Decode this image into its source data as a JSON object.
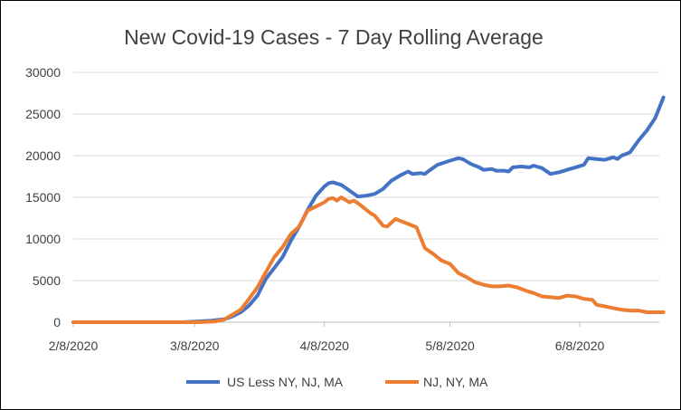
{
  "chart_data": {
    "type": "line",
    "title": "New Covid-19 Cases - 7 Day Rolling Average",
    "xlabel": "",
    "ylabel": "",
    "ylim": [
      0,
      30000
    ],
    "y_ticks": [
      0,
      5000,
      10000,
      15000,
      20000,
      25000,
      30000
    ],
    "grid": true,
    "legend_position": "bottom",
    "x_start": "2/8/2020",
    "x_end_day": 140,
    "x_ticks": [
      {
        "label": "2/8/2020",
        "day": 0
      },
      {
        "label": "3/8/2020",
        "day": 29
      },
      {
        "label": "4/8/2020",
        "day": 60
      },
      {
        "label": "5/8/2020",
        "day": 90
      },
      {
        "label": "6/8/2020",
        "day": 121
      }
    ],
    "series": [
      {
        "name": "US Less NY, NJ, MA",
        "color": "#4472c4",
        "points": [
          [
            0,
            0
          ],
          [
            20,
            0
          ],
          [
            26,
            0
          ],
          [
            30,
            100
          ],
          [
            33,
            200
          ],
          [
            36,
            350
          ],
          [
            38,
            700
          ],
          [
            40,
            1200
          ],
          [
            42,
            2000
          ],
          [
            44,
            3200
          ],
          [
            46,
            5200
          ],
          [
            48,
            6500
          ],
          [
            50,
            7800
          ],
          [
            52,
            9800
          ],
          [
            54,
            11500
          ],
          [
            56,
            13500
          ],
          [
            58,
            15200
          ],
          [
            60,
            16300
          ],
          [
            61,
            16700
          ],
          [
            62,
            16800
          ],
          [
            64,
            16500
          ],
          [
            66,
            15800
          ],
          [
            68,
            15100
          ],
          [
            70,
            15200
          ],
          [
            72,
            15400
          ],
          [
            74,
            16000
          ],
          [
            76,
            17000
          ],
          [
            78,
            17600
          ],
          [
            80,
            18100
          ],
          [
            81,
            17800
          ],
          [
            83,
            17900
          ],
          [
            84,
            17800
          ],
          [
            85,
            18200
          ],
          [
            87,
            18900
          ],
          [
            90,
            19400
          ],
          [
            92,
            19700
          ],
          [
            93,
            19600
          ],
          [
            95,
            19000
          ],
          [
            97,
            18600
          ],
          [
            98,
            18300
          ],
          [
            100,
            18400
          ],
          [
            101,
            18200
          ],
          [
            103,
            18200
          ],
          [
            104,
            18100
          ],
          [
            105,
            18600
          ],
          [
            107,
            18700
          ],
          [
            109,
            18600
          ],
          [
            110,
            18800
          ],
          [
            112,
            18500
          ],
          [
            114,
            17800
          ],
          [
            116,
            18000
          ],
          [
            118,
            18300
          ],
          [
            120,
            18600
          ],
          [
            122,
            18900
          ],
          [
            123,
            19700
          ],
          [
            125,
            19600
          ],
          [
            127,
            19500
          ],
          [
            129,
            19800
          ],
          [
            130,
            19600
          ],
          [
            131,
            20000
          ],
          [
            133,
            20400
          ],
          [
            135,
            21800
          ],
          [
            137,
            23000
          ],
          [
            139,
            24500
          ],
          [
            141,
            27000
          ]
        ]
      },
      {
        "name": "NJ, NY, MA",
        "color": "#ed7d31",
        "points": [
          [
            0,
            0
          ],
          [
            20,
            0
          ],
          [
            30,
            0
          ],
          [
            34,
            100
          ],
          [
            36,
            300
          ],
          [
            38,
            900
          ],
          [
            40,
            1500
          ],
          [
            42,
            2800
          ],
          [
            44,
            4200
          ],
          [
            46,
            6000
          ],
          [
            48,
            7800
          ],
          [
            50,
            9000
          ],
          [
            52,
            10600
          ],
          [
            54,
            11500
          ],
          [
            56,
            13400
          ],
          [
            58,
            13900
          ],
          [
            60,
            14400
          ],
          [
            61,
            14800
          ],
          [
            62,
            14900
          ],
          [
            63,
            14600
          ],
          [
            64,
            15000
          ],
          [
            65,
            14700
          ],
          [
            66,
            14400
          ],
          [
            67,
            14600
          ],
          [
            68,
            14300
          ],
          [
            69,
            13900
          ],
          [
            71,
            13100
          ],
          [
            72,
            12800
          ],
          [
            74,
            11600
          ],
          [
            75,
            11500
          ],
          [
            77,
            12400
          ],
          [
            78,
            12200
          ],
          [
            80,
            11800
          ],
          [
            82,
            11400
          ],
          [
            84,
            8900
          ],
          [
            86,
            8200
          ],
          [
            88,
            7400
          ],
          [
            90,
            7000
          ],
          [
            92,
            5900
          ],
          [
            94,
            5400
          ],
          [
            96,
            4800
          ],
          [
            98,
            4500
          ],
          [
            100,
            4300
          ],
          [
            102,
            4300
          ],
          [
            104,
            4400
          ],
          [
            106,
            4200
          ],
          [
            108,
            3800
          ],
          [
            110,
            3500
          ],
          [
            112,
            3100
          ],
          [
            114,
            3000
          ],
          [
            116,
            2900
          ],
          [
            118,
            3200
          ],
          [
            120,
            3100
          ],
          [
            122,
            2800
          ],
          [
            124,
            2700
          ],
          [
            125,
            2100
          ],
          [
            127,
            1900
          ],
          [
            129,
            1700
          ],
          [
            131,
            1500
          ],
          [
            133,
            1400
          ],
          [
            135,
            1400
          ],
          [
            137,
            1200
          ],
          [
            139,
            1200
          ],
          [
            141,
            1200
          ]
        ]
      }
    ]
  }
}
